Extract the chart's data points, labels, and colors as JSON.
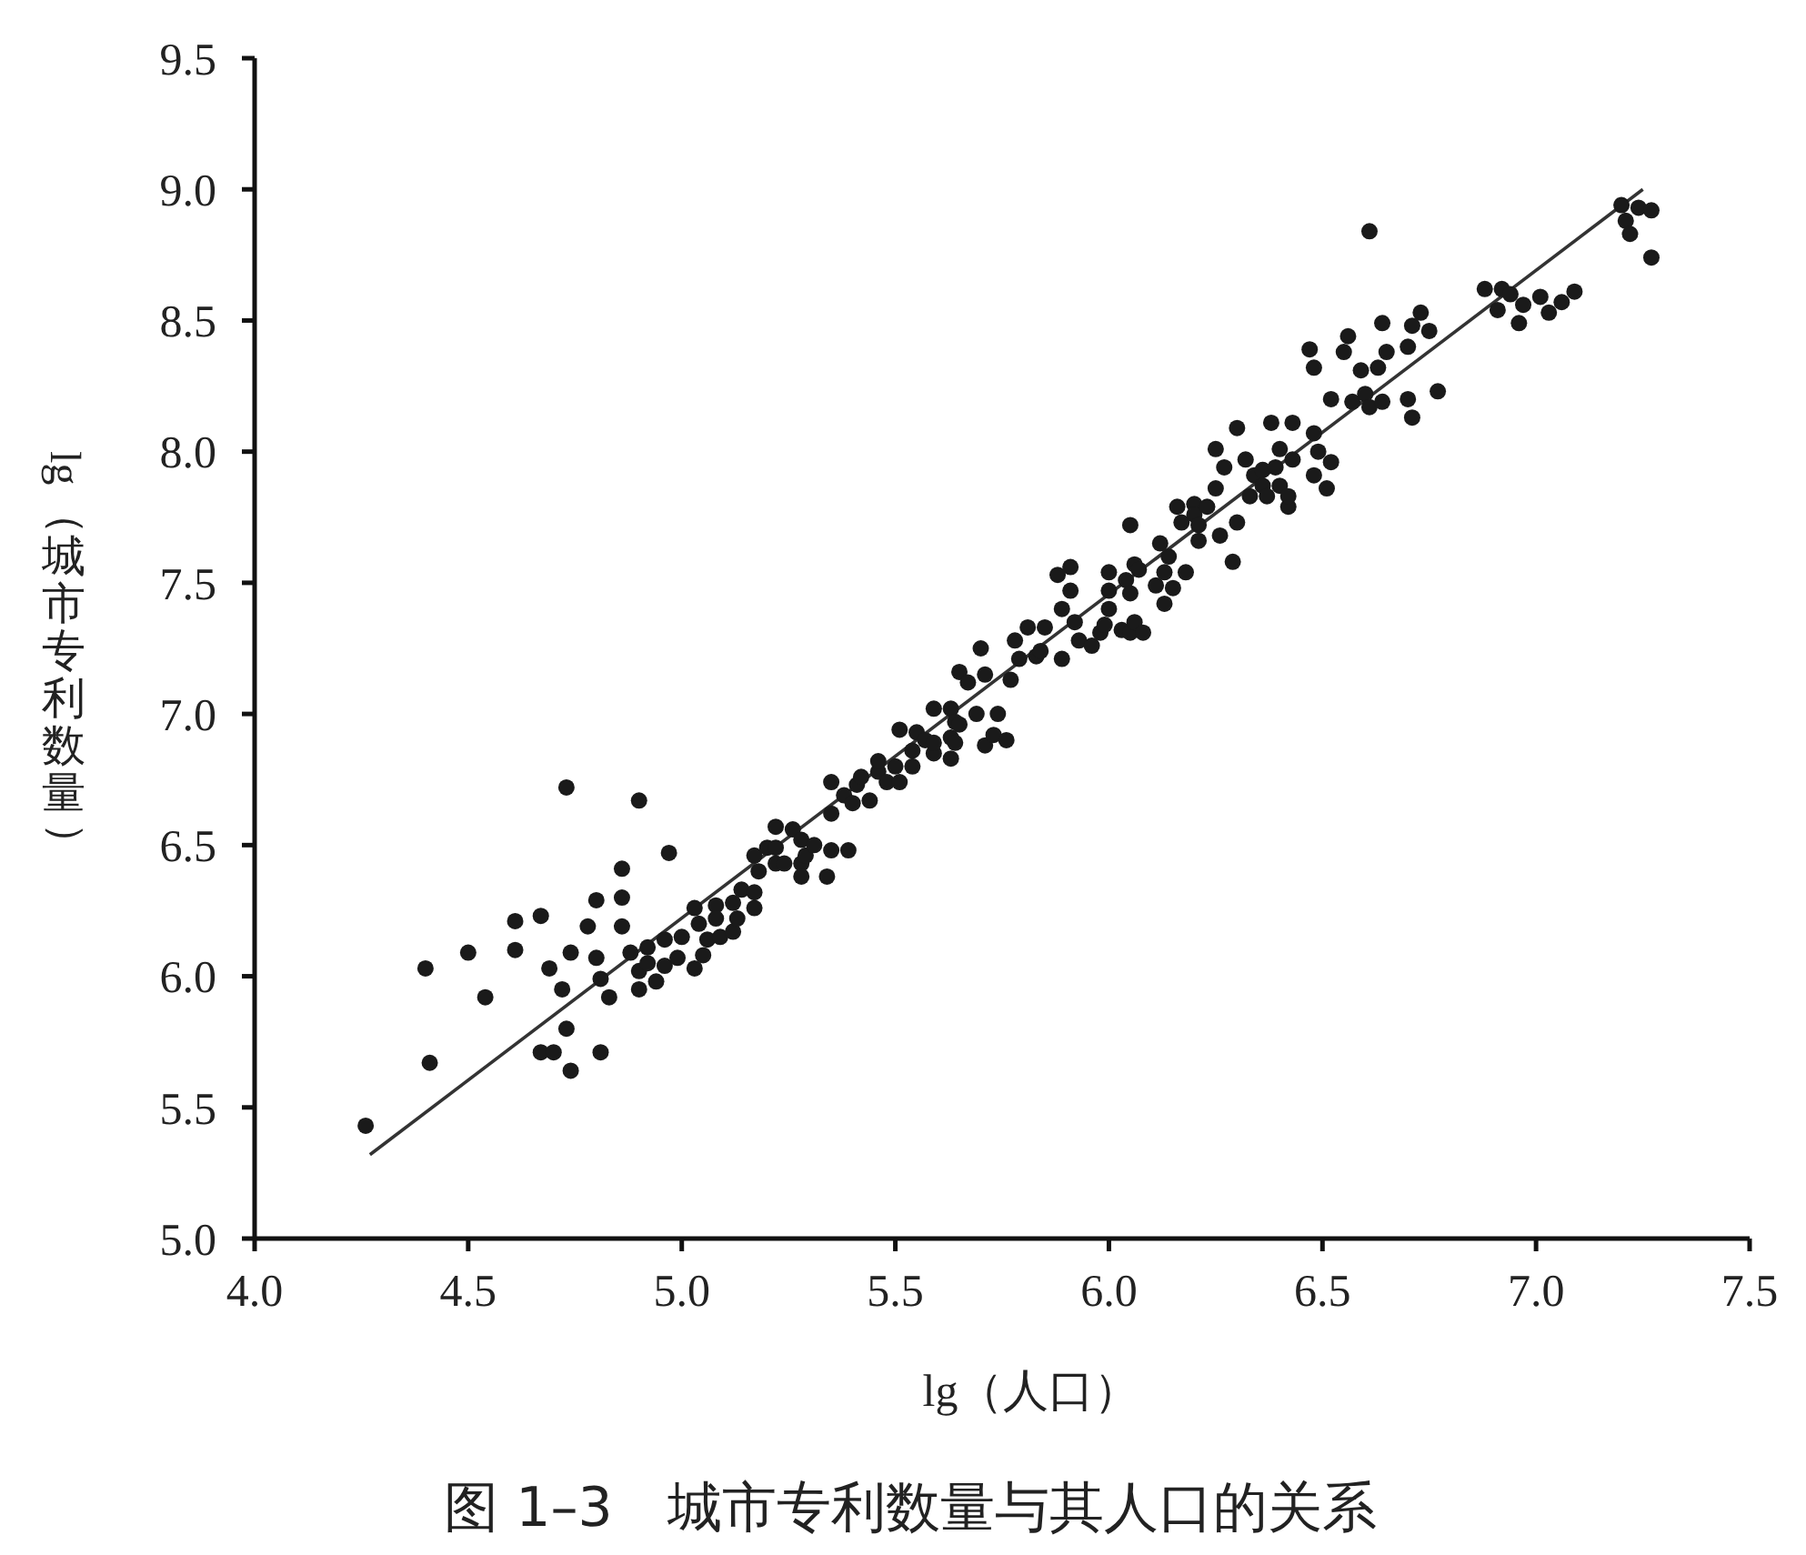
{
  "chart_data": {
    "type": "scatter",
    "title": "图 1–3　城市专利数量与其人口的关系",
    "xlabel": "lg（人口）",
    "ylabel": "lg（城市专利数量）",
    "xlim": [
      4.0,
      7.5
    ],
    "ylim": [
      5.0,
      9.5
    ],
    "xticks": [
      {
        "value": 4,
        "label": "4.0"
      },
      {
        "value": 4.5,
        "label": "4.5"
      },
      {
        "value": 5,
        "label": "5.0"
      },
      {
        "value": 5.5,
        "label": "5.5"
      },
      {
        "value": 6,
        "label": "6.0"
      },
      {
        "value": 6.5,
        "label": "6.5"
      },
      {
        "value": 7,
        "label": "7.0"
      },
      {
        "value": 7.5,
        "label": "7.5"
      }
    ],
    "yticks": [
      {
        "value": 5,
        "label": "5.0"
      },
      {
        "value": 5.5,
        "label": "5.5"
      },
      {
        "value": 6,
        "label": "6.0"
      },
      {
        "value": 6.5,
        "label": "6.5"
      },
      {
        "value": 7,
        "label": "7.0"
      },
      {
        "value": 7.5,
        "label": "7.5"
      },
      {
        "value": 8,
        "label": "8.0"
      },
      {
        "value": 8.5,
        "label": "8.5"
      },
      {
        "value": 9,
        "label": "9.0"
      },
      {
        "value": 9.5,
        "label": "9.5"
      }
    ],
    "series": [
      {
        "color": "#1a1a1a",
        "marker": "circle",
        "x": [
          4.26,
          4.41,
          4.4,
          4.5,
          4.54,
          4.61,
          4.61,
          4.67,
          4.69,
          4.67,
          4.7,
          4.72,
          4.73,
          4.74,
          4.73,
          4.74,
          4.78,
          4.8,
          4.8,
          4.81,
          4.81,
          4.83,
          4.86,
          4.86,
          4.86,
          4.88,
          4.9,
          4.9,
          4.9,
          4.92,
          4.92,
          4.94,
          4.96,
          4.96,
          4.97,
          4.99,
          5.0,
          5.03,
          5.03,
          5.04,
          5.05,
          5.06,
          5.08,
          5.08,
          5.09,
          5.12,
          5.12,
          5.13,
          5.14,
          5.17,
          5.18,
          5.17,
          5.17,
          5.2,
          5.22,
          5.22,
          5.22,
          5.24,
          5.26,
          5.28,
          5.28,
          5.28,
          5.29,
          5.31,
          5.34,
          5.35,
          5.39,
          5.35,
          5.35,
          5.38,
          5.4,
          5.41,
          5.42,
          5.44,
          5.46,
          5.46,
          5.48,
          5.51,
          5.5,
          5.51,
          5.54,
          5.54,
          5.55,
          5.57,
          5.59,
          5.59,
          5.59,
          5.63,
          5.63,
          5.63,
          5.64,
          5.64,
          5.65,
          5.65,
          5.67,
          5.69,
          5.7,
          5.71,
          5.71,
          5.73,
          5.74,
          5.76,
          5.77,
          5.79,
          5.78,
          5.81,
          5.83,
          5.85,
          5.84,
          5.88,
          5.91,
          5.91,
          5.89,
          5.92,
          5.89,
          5.93,
          5.96,
          5.98,
          5.99,
          6.0,
          6.03,
          6.05,
          6.06,
          6.08,
          6.0,
          6.0,
          6.04,
          6.05,
          6.05,
          6.06,
          6.07,
          6.11,
          6.13,
          6.13,
          6.12,
          6.14,
          6.15,
          6.18,
          6.16,
          6.17,
          6.2,
          6.2,
          6.21,
          6.21,
          6.23,
          6.25,
          6.26,
          6.25,
          6.27,
          6.3,
          6.29,
          6.3,
          6.32,
          6.33,
          6.34,
          6.36,
          6.36,
          6.37,
          6.38,
          6.39,
          6.4,
          6.4,
          6.42,
          6.42,
          6.43,
          6.43,
          6.48,
          6.48,
          6.49,
          6.51,
          6.52,
          6.47,
          6.48,
          6.52,
          6.55,
          6.56,
          6.57,
          6.59,
          6.6,
          6.61,
          6.63,
          6.64,
          6.65,
          6.7,
          6.7,
          6.71,
          6.61,
          6.64,
          6.71,
          6.73,
          6.75,
          6.77,
          6.88,
          6.92,
          6.94,
          6.91,
          6.97,
          6.96,
          7.01,
          7.03,
          7.06,
          7.09,
          7.2,
          7.24,
          7.27,
          7.21,
          7.22,
          7.27
        ],
        "values": [
          5.43,
          5.67,
          6.03,
          6.09,
          5.92,
          6.1,
          6.21,
          6.23,
          6.03,
          5.71,
          5.71,
          5.95,
          5.8,
          5.64,
          6.72,
          6.09,
          6.19,
          6.29,
          6.07,
          5.71,
          5.99,
          5.92,
          6.3,
          6.19,
          6.41,
          6.09,
          6.67,
          6.02,
          5.95,
          6.11,
          6.05,
          5.98,
          6.04,
          6.14,
          6.47,
          6.07,
          6.15,
          6.26,
          6.03,
          6.2,
          6.08,
          6.14,
          6.27,
          6.22,
          6.15,
          6.17,
          6.28,
          6.22,
          6.33,
          6.46,
          6.4,
          6.26,
          6.32,
          6.49,
          6.57,
          6.49,
          6.43,
          6.43,
          6.56,
          6.52,
          6.43,
          6.38,
          6.46,
          6.5,
          6.38,
          6.48,
          6.48,
          6.62,
          6.74,
          6.69,
          6.66,
          6.73,
          6.76,
          6.67,
          6.78,
          6.82,
          6.74,
          6.74,
          6.8,
          6.94,
          6.8,
          6.86,
          6.93,
          6.9,
          6.85,
          7.02,
          6.89,
          7.02,
          6.83,
          6.91,
          6.97,
          6.89,
          6.96,
          7.16,
          7.12,
          7.0,
          7.25,
          7.15,
          6.88,
          6.92,
          7.0,
          6.9,
          7.13,
          7.21,
          7.28,
          7.33,
          7.22,
          7.33,
          7.24,
          7.53,
          7.56,
          7.47,
          7.4,
          7.35,
          7.21,
          7.28,
          7.26,
          7.31,
          7.34,
          7.54,
          7.32,
          7.31,
          7.35,
          7.31,
          7.4,
          7.47,
          7.51,
          7.72,
          7.46,
          7.57,
          7.55,
          7.49,
          7.42,
          7.54,
          7.65,
          7.6,
          7.48,
          7.54,
          7.79,
          7.73,
          7.8,
          7.76,
          7.66,
          7.72,
          7.79,
          7.86,
          7.68,
          8.01,
          7.94,
          7.73,
          7.58,
          8.09,
          7.97,
          7.83,
          7.91,
          7.93,
          7.87,
          7.83,
          8.11,
          7.94,
          8.01,
          7.87,
          7.79,
          7.83,
          7.97,
          8.11,
          7.91,
          8.07,
          8.0,
          7.86,
          7.96,
          8.39,
          8.32,
          8.2,
          8.38,
          8.44,
          8.19,
          8.31,
          8.22,
          8.17,
          8.32,
          8.19,
          8.38,
          8.2,
          8.4,
          8.13,
          8.84,
          8.49,
          8.48,
          8.53,
          8.46,
          8.23,
          8.62,
          8.62,
          8.6,
          8.54,
          8.56,
          8.49,
          8.59,
          8.53,
          8.57,
          8.61,
          8.94,
          8.93,
          8.92,
          8.88,
          8.83,
          8.74
        ]
      },
      {
        "type": "line",
        "color": "#333333",
        "x": [
          4.27,
          7.25
        ],
        "values": [
          5.32,
          9.0
        ]
      }
    ]
  }
}
